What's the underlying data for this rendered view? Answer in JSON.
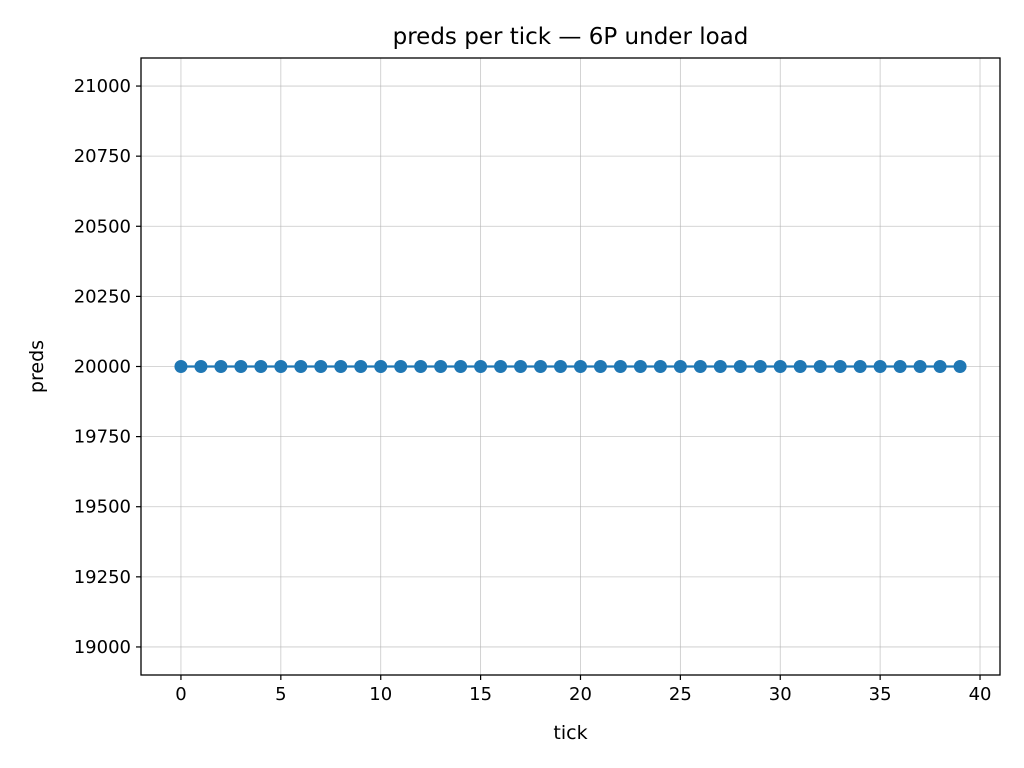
{
  "chart_data": {
    "type": "line",
    "title": "preds per tick — 6P under load",
    "xlabel": "tick",
    "ylabel": "preds",
    "xlim": [
      -2,
      41
    ],
    "ylim": [
      18900,
      21100
    ],
    "xticks": [
      0,
      5,
      10,
      15,
      20,
      25,
      30,
      35,
      40
    ],
    "yticks": [
      19000,
      19250,
      19500,
      19750,
      20000,
      20250,
      20500,
      20750,
      21000
    ],
    "grid": true,
    "legend": "none",
    "series": [
      {
        "color": "#1f77b4",
        "marker": "circle",
        "x": [
          0,
          1,
          2,
          3,
          4,
          5,
          6,
          7,
          8,
          9,
          10,
          11,
          12,
          13,
          14,
          15,
          16,
          17,
          18,
          19,
          20,
          21,
          22,
          23,
          24,
          25,
          26,
          27,
          28,
          29,
          30,
          31,
          32,
          33,
          34,
          35,
          36,
          37,
          38,
          39
        ],
        "y": [
          20000,
          20000,
          20000,
          20000,
          20000,
          20000,
          20000,
          20000,
          20000,
          20000,
          20000,
          20000,
          20000,
          20000,
          20000,
          20000,
          20000,
          20000,
          20000,
          20000,
          20000,
          20000,
          20000,
          20000,
          20000,
          20000,
          20000,
          20000,
          20000,
          20000,
          20000,
          20000,
          20000,
          20000,
          20000,
          20000,
          20000,
          20000,
          20000,
          20000
        ]
      }
    ]
  }
}
